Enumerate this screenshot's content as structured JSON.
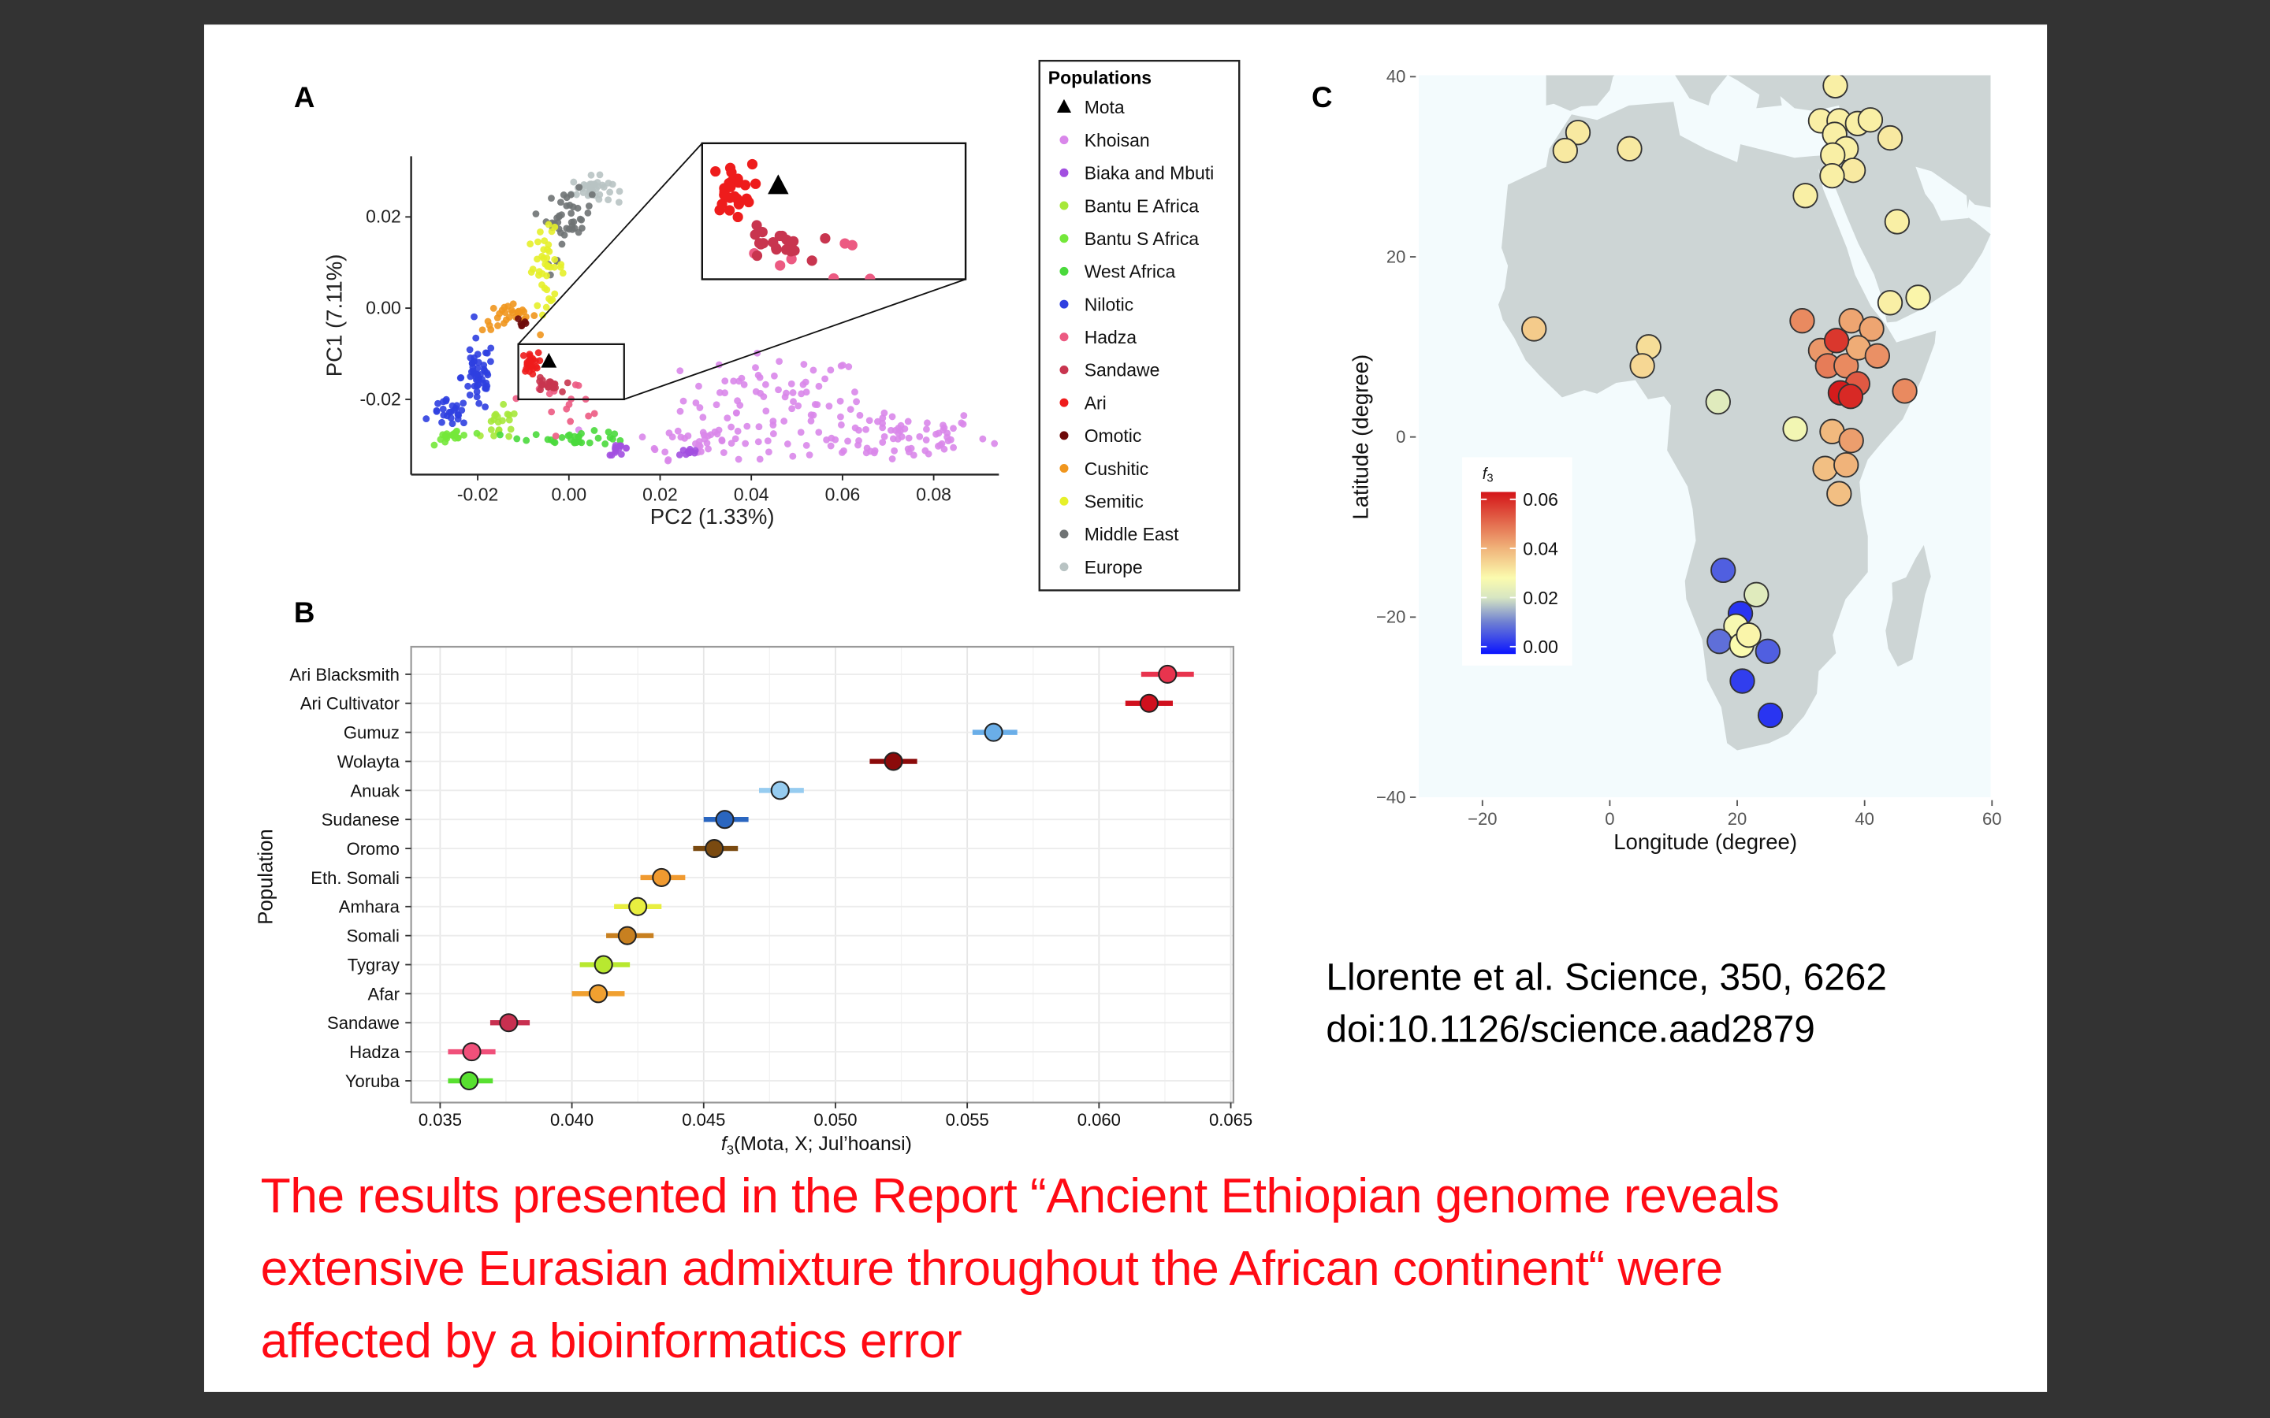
{
  "panel_labels": {
    "a": "A",
    "b": "B",
    "c": "C"
  },
  "citation": {
    "line1": "Llorente et al. Science, 350, 6262",
    "line2": "doi:10.1126/science.aad2879"
  },
  "headline": {
    "line1": "The results presented in the Report “Ancient Ethiopian genome reveals",
    "line2": "extensive Eurasian admixture throughout the African continent“ were",
    "line3": "affected by a bioinformatics error"
  },
  "chart_data": [
    {
      "type": "scatter",
      "panel": "A",
      "xlabel": "PC2 (1.33%)",
      "ylabel": "PC1 (7.11%)",
      "xlim": [
        -0.0346,
        0.0943
      ],
      "ylim": [
        -0.0365,
        0.0333
      ],
      "xticks": [
        "-0.02",
        "0.00",
        "0.02",
        "0.04",
        "0.06",
        "0.08"
      ],
      "xtick_values": [
        -0.02,
        0,
        0.02,
        0.04,
        0.06,
        0.08
      ],
      "yticks": [
        "0.02",
        "0.00",
        "-0.02"
      ],
      "ytick_values": [
        0.02,
        0,
        -0.02
      ],
      "inset_window": {
        "x": [
          -0.0111,
          0.0121
        ],
        "y": [
          -0.02,
          -0.0079
        ]
      },
      "legend": {
        "title": "Populations",
        "placement": "right",
        "items": [
          {
            "label": "Mota",
            "color": "#000000",
            "marker": "triangle"
          },
          {
            "label": "Khoisan",
            "color": "#d987ea",
            "marker": "circle"
          },
          {
            "label": "Biaka and Mbuti",
            "color": "#a24fe0",
            "marker": "circle"
          },
          {
            "label": "Bantu E Africa",
            "color": "#a6e83a",
            "marker": "circle"
          },
          {
            "label": "Bantu S Africa",
            "color": "#74e83a",
            "marker": "circle"
          },
          {
            "label": "West Africa",
            "color": "#4ad93c",
            "marker": "circle"
          },
          {
            "label": "Nilotic",
            "color": "#2f3fe0",
            "marker": "circle"
          },
          {
            "label": "Hadza",
            "color": "#ec5a82",
            "marker": "circle"
          },
          {
            "label": "Sandawe",
            "color": "#c8354f",
            "marker": "circle"
          },
          {
            "label": "Ari",
            "color": "#ee1c1c",
            "marker": "circle"
          },
          {
            "label": "Omotic",
            "color": "#6e0a0a",
            "marker": "circle"
          },
          {
            "label": "Cushitic",
            "color": "#f0961e",
            "marker": "circle"
          },
          {
            "label": "Semitic",
            "color": "#e6f02a",
            "marker": "circle"
          },
          {
            "label": "Middle East",
            "color": "#6f7374",
            "marker": "circle"
          },
          {
            "label": "Europe",
            "color": "#b8c3c3",
            "marker": "circle"
          }
        ]
      },
      "clusters": [
        {
          "population": "Khoisan",
          "cx": 0.045,
          "cy": -0.02,
          "sx": 0.01,
          "sy": 0.005,
          "n": 70
        },
        {
          "population": "Khoisan",
          "cx": 0.07,
          "cy": -0.028,
          "sx": 0.011,
          "sy": 0.003,
          "n": 80
        },
        {
          "population": "Khoisan",
          "cx": 0.03,
          "cy": -0.029,
          "sx": 0.008,
          "sy": 0.002,
          "n": 40
        },
        {
          "population": "Europe",
          "cx": 0.005,
          "cy": 0.026,
          "sx": 0.0022,
          "sy": 0.0014,
          "n": 40
        },
        {
          "population": "Middle East",
          "cx": 0.0,
          "cy": 0.02,
          "sx": 0.0025,
          "sy": 0.0028,
          "n": 40
        },
        {
          "population": "Middle East",
          "cx": -0.004,
          "cy": 0.011,
          "sx": 0.001,
          "sy": 0.003,
          "n": 3
        },
        {
          "population": "Semitic",
          "cx": -0.005,
          "cy": 0.009,
          "sx": 0.002,
          "sy": 0.004,
          "n": 40
        },
        {
          "population": "Cushitic",
          "cx": -0.013,
          "cy": -0.002,
          "sx": 0.003,
          "sy": 0.0015,
          "n": 30
        },
        {
          "population": "Omotic",
          "cx": -0.01,
          "cy": -0.003,
          "sx": 0.0008,
          "sy": 0.0008,
          "n": 6
        },
        {
          "population": "Nilotic",
          "cx": -0.02,
          "cy": -0.015,
          "sx": 0.0018,
          "sy": 0.004,
          "n": 50
        },
        {
          "population": "Nilotic",
          "cx": -0.026,
          "cy": -0.023,
          "sx": 0.002,
          "sy": 0.0014,
          "n": 25
        },
        {
          "population": "Bantu E Africa",
          "cx": -0.015,
          "cy": -0.026,
          "sx": 0.002,
          "sy": 0.002,
          "n": 20
        },
        {
          "population": "Bantu S Africa",
          "cx": -0.025,
          "cy": -0.028,
          "sx": 0.002,
          "sy": 0.0008,
          "n": 20
        },
        {
          "population": "West Africa",
          "cx": 0.002,
          "cy": -0.0285,
          "sx": 0.006,
          "sy": 0.0007,
          "n": 30
        },
        {
          "population": "Biaka and Mbuti",
          "cx": 0.011,
          "cy": -0.031,
          "sx": 0.0012,
          "sy": 0.0006,
          "n": 12
        },
        {
          "population": "Biaka and Mbuti",
          "cx": 0.026,
          "cy": -0.0315,
          "sx": 0.0012,
          "sy": 0.0005,
          "n": 10
        },
        {
          "population": "Hadza",
          "cx": 0.0,
          "cy": -0.02,
          "sx": 0.005,
          "sy": 0.002,
          "n": 15
        },
        {
          "population": "Sandawe",
          "cx": -0.005,
          "cy": -0.017,
          "sx": 0.0015,
          "sy": 0.0008,
          "n": 20
        },
        {
          "population": "Ari",
          "cx": -0.0085,
          "cy": -0.012,
          "sx": 0.0009,
          "sy": 0.0011,
          "n": 25
        }
      ],
      "mota": {
        "x": -0.0044,
        "y": -0.0117
      }
    },
    {
      "type": "dot-errorbar",
      "panel": "B",
      "ylabel": "Population",
      "xlabel_f": "f",
      "xlabel_sub": "3",
      "xlabel_rest": "(Mota, X; Jul’hoansi)",
      "xlim": [
        0.0339,
        0.0651
      ],
      "xticks": [
        "0.035",
        "0.040",
        "0.045",
        "0.050",
        "0.055",
        "0.060",
        "0.065"
      ],
      "xtick_values": [
        0.035,
        0.04,
        0.045,
        0.05,
        0.055,
        0.06,
        0.065
      ],
      "grid": true,
      "rows": [
        {
          "population": "Ari Blacksmith",
          "value": 0.0626,
          "lo": 0.0616,
          "hi": 0.0636,
          "color": "#e8344e"
        },
        {
          "population": "Ari Cultivator",
          "value": 0.0619,
          "lo": 0.061,
          "hi": 0.0628,
          "color": "#d0101e"
        },
        {
          "population": "Gumuz",
          "value": 0.056,
          "lo": 0.0552,
          "hi": 0.0569,
          "color": "#6aaee8"
        },
        {
          "population": "Wolayta",
          "value": 0.0522,
          "lo": 0.0513,
          "hi": 0.0531,
          "color": "#8b0a0a"
        },
        {
          "population": "Anuak",
          "value": 0.0479,
          "lo": 0.0471,
          "hi": 0.0488,
          "color": "#96ccf0"
        },
        {
          "population": "Sudanese",
          "value": 0.0458,
          "lo": 0.045,
          "hi": 0.0467,
          "color": "#2a66c0"
        },
        {
          "population": "Oromo",
          "value": 0.0454,
          "lo": 0.0446,
          "hi": 0.0463,
          "color": "#7a4a10"
        },
        {
          "population": "Eth. Somali",
          "value": 0.0434,
          "lo": 0.0426,
          "hi": 0.0443,
          "color": "#f09a30"
        },
        {
          "population": "Amhara",
          "value": 0.0425,
          "lo": 0.0416,
          "hi": 0.0434,
          "color": "#e8ee40"
        },
        {
          "population": "Somali",
          "value": 0.0421,
          "lo": 0.0413,
          "hi": 0.0431,
          "color": "#c88020"
        },
        {
          "population": "Tygray",
          "value": 0.0412,
          "lo": 0.0403,
          "hi": 0.0422,
          "color": "#b8e830"
        },
        {
          "population": "Afar",
          "value": 0.041,
          "lo": 0.04,
          "hi": 0.042,
          "color": "#f0a030"
        },
        {
          "population": "Sandawe",
          "value": 0.0376,
          "lo": 0.0369,
          "hi": 0.0384,
          "color": "#c83050"
        },
        {
          "population": "Hadza",
          "value": 0.0362,
          "lo": 0.0353,
          "hi": 0.0371,
          "color": "#f0507a"
        },
        {
          "population": "Yoruba",
          "value": 0.0361,
          "lo": 0.0353,
          "hi": 0.037,
          "color": "#58e030"
        }
      ]
    },
    {
      "type": "map-scatter",
      "panel": "C",
      "xlabel": "Longitude (degree)",
      "ylabel": "Latitude (degree)",
      "xlim": [
        -30,
        60
      ],
      "ylim": [
        -40,
        40
      ],
      "xticks": [
        "−20",
        "0",
        "20",
        "40",
        "60"
      ],
      "xtick_values": [
        -20,
        0,
        20,
        40,
        60
      ],
      "yticks": [
        "40",
        "20",
        "0",
        "−20",
        "−40"
      ],
      "ytick_values": [
        40,
        20,
        0,
        -20,
        -40
      ],
      "colorbar": {
        "title_f": "f",
        "title_sub": "3",
        "ticks": [
          "0.06",
          "0.04",
          "0.02",
          "0.00"
        ],
        "tick_values": [
          0.06,
          0.04,
          0.02,
          0.0
        ],
        "range": [
          -0.003,
          0.063
        ],
        "stops": [
          {
            "value": -0.003,
            "color": "#0a14ff"
          },
          {
            "value": 0.01,
            "color": "#6f80d2"
          },
          {
            "value": 0.02,
            "color": "#d7e6c2"
          },
          {
            "value": 0.028,
            "color": "#fbfbae"
          },
          {
            "value": 0.04,
            "color": "#f0b37a"
          },
          {
            "value": 0.063,
            "color": "#d41418"
          }
        ]
      },
      "land_color": "#cdd5d5",
      "sea_color": "#f3fbfd",
      "points": [
        {
          "lon": 35.4,
          "lat": 39.0,
          "f3": 0.03
        },
        {
          "lon": 33.1,
          "lat": 35.1,
          "f3": 0.03
        },
        {
          "lon": 36.0,
          "lat": 35.1,
          "f3": 0.03
        },
        {
          "lon": 38.9,
          "lat": 34.8,
          "f3": 0.03
        },
        {
          "lon": 40.9,
          "lat": 35.2,
          "f3": 0.03
        },
        {
          "lon": 44.0,
          "lat": 33.2,
          "f3": 0.031
        },
        {
          "lon": 35.3,
          "lat": 33.6,
          "f3": 0.03
        },
        {
          "lon": 37.1,
          "lat": 32.0,
          "f3": 0.03
        },
        {
          "lon": 35.0,
          "lat": 31.3,
          "f3": 0.03
        },
        {
          "lon": 38.2,
          "lat": 29.6,
          "f3": 0.031
        },
        {
          "lon": 34.9,
          "lat": 29.0,
          "f3": 0.03
        },
        {
          "lon": 30.7,
          "lat": 26.8,
          "f3": 0.03
        },
        {
          "lon": 45.1,
          "lat": 23.9,
          "f3": 0.03
        },
        {
          "lon": 44.0,
          "lat": 14.9,
          "f3": 0.03
        },
        {
          "lon": 48.4,
          "lat": 15.5,
          "f3": 0.029
        },
        {
          "lon": -5.0,
          "lat": 33.8,
          "f3": 0.031
        },
        {
          "lon": -7.0,
          "lat": 31.8,
          "f3": 0.031
        },
        {
          "lon": 3.1,
          "lat": 32.0,
          "f3": 0.031
        },
        {
          "lon": -11.9,
          "lat": 12.0,
          "f3": 0.036
        },
        {
          "lon": 6.1,
          "lat": 10.0,
          "f3": 0.033
        },
        {
          "lon": 5.1,
          "lat": 7.9,
          "f3": 0.034
        },
        {
          "lon": 17.0,
          "lat": 3.9,
          "f3": 0.022
        },
        {
          "lon": 29.1,
          "lat": 0.9,
          "f3": 0.026
        },
        {
          "lon": 30.2,
          "lat": 12.9,
          "f3": 0.046
        },
        {
          "lon": 33.1,
          "lat": 9.6,
          "f3": 0.044
        },
        {
          "lon": 34.2,
          "lat": 7.9,
          "f3": 0.048
        },
        {
          "lon": 37.1,
          "lat": 7.9,
          "f3": 0.046
        },
        {
          "lon": 37.9,
          "lat": 12.9,
          "f3": 0.042
        },
        {
          "lon": 41.1,
          "lat": 12.0,
          "f3": 0.042
        },
        {
          "lon": 39.0,
          "lat": 9.9,
          "f3": 0.041
        },
        {
          "lon": 42.0,
          "lat": 9.0,
          "f3": 0.045
        },
        {
          "lon": 35.6,
          "lat": 10.7,
          "f3": 0.058
        },
        {
          "lon": 38.9,
          "lat": 5.9,
          "f3": 0.053
        },
        {
          "lon": 36.2,
          "lat": 4.9,
          "f3": 0.062
        },
        {
          "lon": 37.8,
          "lat": 4.5,
          "f3": 0.06
        },
        {
          "lon": 46.3,
          "lat": 5.1,
          "f3": 0.046
        },
        {
          "lon": 34.9,
          "lat": 0.6,
          "f3": 0.039
        },
        {
          "lon": 37.9,
          "lat": -0.4,
          "f3": 0.043
        },
        {
          "lon": 33.8,
          "lat": -3.5,
          "f3": 0.038
        },
        {
          "lon": 37.1,
          "lat": -3.1,
          "f3": 0.04
        },
        {
          "lon": 36.0,
          "lat": -6.3,
          "f3": 0.038
        },
        {
          "lon": 17.8,
          "lat": -14.8,
          "f3": 0.006
        },
        {
          "lon": 23.0,
          "lat": -17.5,
          "f3": 0.022
        },
        {
          "lon": 20.5,
          "lat": -19.6,
          "f3": 0.001
        },
        {
          "lon": 19.8,
          "lat": -21.0,
          "f3": 0.027
        },
        {
          "lon": 17.2,
          "lat": -22.7,
          "f3": 0.008
        },
        {
          "lon": 20.7,
          "lat": -23.1,
          "f3": 0.028
        },
        {
          "lon": 21.8,
          "lat": -22.0,
          "f3": 0.029
        },
        {
          "lon": 24.8,
          "lat": -23.8,
          "f3": 0.006
        },
        {
          "lon": 20.8,
          "lat": -27.1,
          "f3": 0.002
        },
        {
          "lon": 25.2,
          "lat": -30.9,
          "f3": 0.001
        }
      ]
    }
  ]
}
